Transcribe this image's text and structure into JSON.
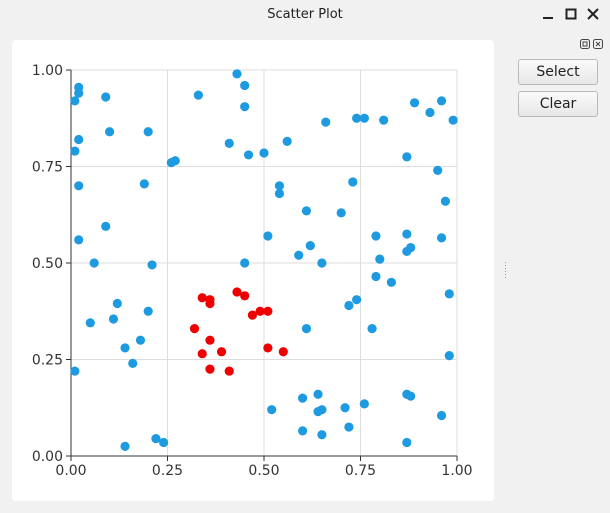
{
  "window": {
    "title": "Scatter Plot"
  },
  "controls": {
    "select_label": "Select",
    "clear_label": "Clear"
  },
  "colors": {
    "unselected": "#1e9be0",
    "selected": "#ee0000",
    "grid": "#dddddd",
    "axis": "#333333"
  },
  "chart_data": {
    "type": "scatter",
    "title": "",
    "xlabel": "",
    "ylabel": "",
    "xlim": [
      0,
      1
    ],
    "ylim": [
      0,
      1
    ],
    "x_ticks": [
      "0.00",
      "0.25",
      "0.50",
      "0.75",
      "1.00"
    ],
    "y_ticks": [
      "0.00",
      "0.25",
      "0.50",
      "0.75",
      "1.00"
    ],
    "grid": true,
    "legend": "none",
    "series": [
      {
        "color": "#1e9be0",
        "points": [
          [
            0.02,
            0.955
          ],
          [
            0.02,
            0.94
          ],
          [
            0.01,
            0.92
          ],
          [
            0.09,
            0.93
          ],
          [
            0.02,
            0.82
          ],
          [
            0.1,
            0.84
          ],
          [
            0.01,
            0.79
          ],
          [
            0.02,
            0.7
          ],
          [
            0.2,
            0.84
          ],
          [
            0.19,
            0.705
          ],
          [
            0.26,
            0.76
          ],
          [
            0.27,
            0.765
          ],
          [
            0.33,
            0.935
          ],
          [
            0.43,
            0.99
          ],
          [
            0.45,
            0.96
          ],
          [
            0.45,
            0.905
          ],
          [
            0.41,
            0.81
          ],
          [
            0.46,
            0.78
          ],
          [
            0.5,
            0.785
          ],
          [
            0.56,
            0.815
          ],
          [
            0.66,
            0.865
          ],
          [
            0.74,
            0.875
          ],
          [
            0.76,
            0.875
          ],
          [
            0.81,
            0.87
          ],
          [
            0.89,
            0.915
          ],
          [
            0.96,
            0.92
          ],
          [
            0.93,
            0.89
          ],
          [
            0.99,
            0.87
          ],
          [
            0.87,
            0.775
          ],
          [
            0.95,
            0.74
          ],
          [
            0.97,
            0.66
          ],
          [
            0.73,
            0.71
          ],
          [
            0.54,
            0.7
          ],
          [
            0.54,
            0.68
          ],
          [
            0.7,
            0.63
          ],
          [
            0.61,
            0.635
          ],
          [
            0.09,
            0.595
          ],
          [
            0.02,
            0.56
          ],
          [
            0.51,
            0.57
          ],
          [
            0.62,
            0.545
          ],
          [
            0.59,
            0.52
          ],
          [
            0.65,
            0.5
          ],
          [
            0.79,
            0.57
          ],
          [
            0.87,
            0.575
          ],
          [
            0.88,
            0.54
          ],
          [
            0.87,
            0.53
          ],
          [
            0.96,
            0.565
          ],
          [
            0.8,
            0.51
          ],
          [
            0.79,
            0.465
          ],
          [
            0.83,
            0.45
          ],
          [
            0.06,
            0.5
          ],
          [
            0.21,
            0.495
          ],
          [
            0.45,
            0.5
          ],
          [
            0.12,
            0.395
          ],
          [
            0.2,
            0.375
          ],
          [
            0.11,
            0.355
          ],
          [
            0.05,
            0.345
          ],
          [
            0.72,
            0.39
          ],
          [
            0.74,
            0.405
          ],
          [
            0.98,
            0.42
          ],
          [
            0.61,
            0.33
          ],
          [
            0.78,
            0.33
          ],
          [
            0.18,
            0.3
          ],
          [
            0.14,
            0.28
          ],
          [
            0.16,
            0.24
          ],
          [
            0.01,
            0.22
          ],
          [
            0.98,
            0.26
          ],
          [
            0.52,
            0.12
          ],
          [
            0.6,
            0.15
          ],
          [
            0.64,
            0.16
          ],
          [
            0.65,
            0.12
          ],
          [
            0.64,
            0.115
          ],
          [
            0.71,
            0.125
          ],
          [
            0.76,
            0.135
          ],
          [
            0.87,
            0.16
          ],
          [
            0.88,
            0.155
          ],
          [
            0.96,
            0.105
          ],
          [
            0.72,
            0.075
          ],
          [
            0.6,
            0.065
          ],
          [
            0.65,
            0.055
          ],
          [
            0.87,
            0.035
          ],
          [
            0.22,
            0.045
          ],
          [
            0.24,
            0.035
          ],
          [
            0.14,
            0.025
          ]
        ]
      },
      {
        "color": "#ee0000",
        "points": [
          [
            0.34,
            0.41
          ],
          [
            0.36,
            0.405
          ],
          [
            0.36,
            0.395
          ],
          [
            0.43,
            0.425
          ],
          [
            0.45,
            0.415
          ],
          [
            0.49,
            0.375
          ],
          [
            0.51,
            0.375
          ],
          [
            0.47,
            0.365
          ],
          [
            0.32,
            0.33
          ],
          [
            0.36,
            0.3
          ],
          [
            0.34,
            0.265
          ],
          [
            0.39,
            0.27
          ],
          [
            0.51,
            0.28
          ],
          [
            0.55,
            0.27
          ],
          [
            0.36,
            0.225
          ],
          [
            0.41,
            0.22
          ]
        ]
      }
    ]
  }
}
